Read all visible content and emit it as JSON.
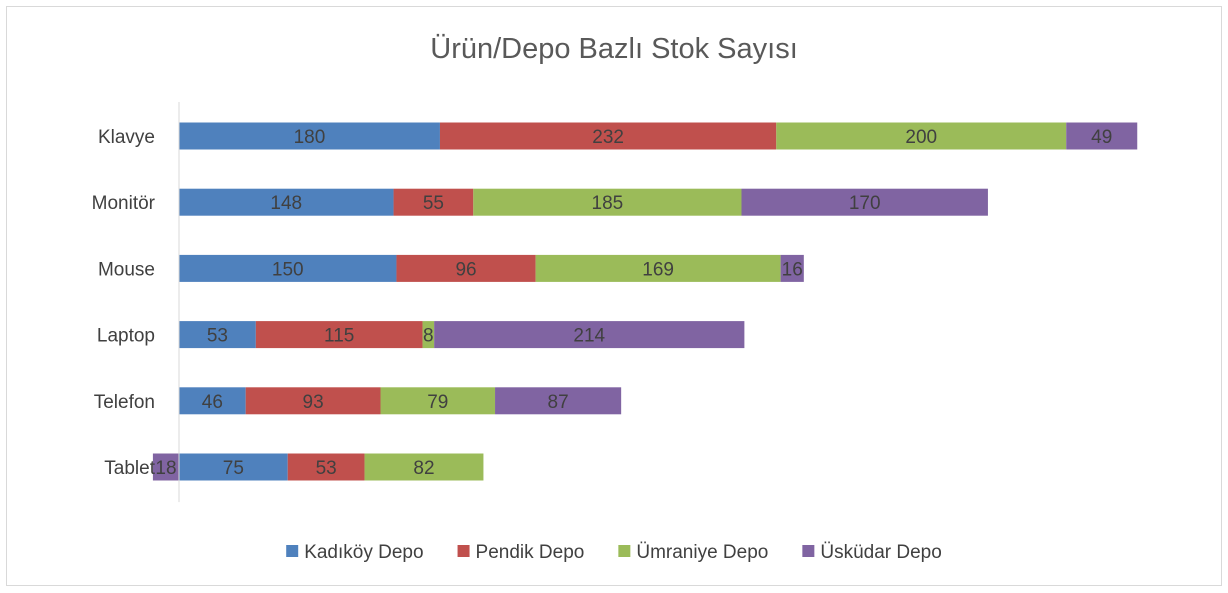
{
  "chart_data": {
    "type": "bar",
    "orientation": "horizontal",
    "stacked": true,
    "title": "Ürün/Depo Bazlı Stok Sayısı",
    "xlabel": "",
    "ylabel": "",
    "categories": [
      "Klavye",
      "Monitör",
      "Mouse",
      "Laptop",
      "Telefon",
      "Tablet"
    ],
    "series": [
      {
        "name": "Kadıköy Depo",
        "color": "#4f81bd",
        "values": [
          180,
          148,
          150,
          53,
          46,
          75
        ]
      },
      {
        "name": "Pendik Depo",
        "color": "#c0504d",
        "values": [
          232,
          55,
          96,
          115,
          93,
          53
        ]
      },
      {
        "name": "Ümraniye Depo",
        "color": "#9bbb59",
        "values": [
          200,
          185,
          169,
          8,
          79,
          82
        ]
      },
      {
        "name": "Üsküdar Depo",
        "color": "#8064a2",
        "values": [
          49,
          170,
          16,
          214,
          87,
          -18
        ]
      }
    ],
    "xlim": [
      -20,
      700
    ],
    "grid": false,
    "data_labels": true,
    "legend_position": "bottom"
  }
}
